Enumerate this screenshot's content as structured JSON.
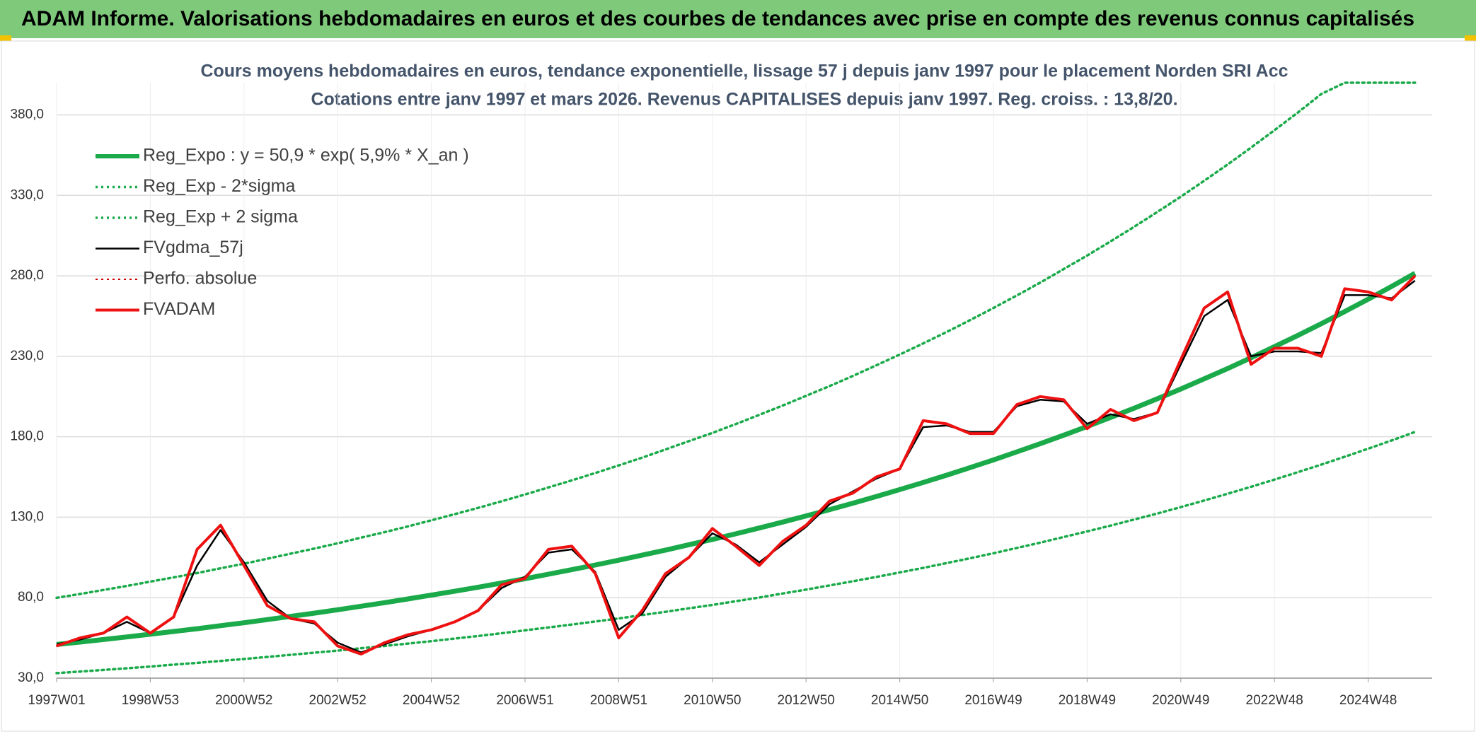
{
  "chart_data": {
    "type": "line",
    "title": "ADAM Informe. Valorisations hebdomadaires en euros et des courbes de tendances avec prise en compte des revenus connus capitalisés",
    "subtitle": [
      "Cours moyens hebdomadaires en euros, tendance exponentielle, lissage 57 j depuis janv 1997 pour le placement Norden SRI Acc",
      "Cotations entre janv 1997 et mars 2026. Revenus CAPITALISES depuis janv 1997. Reg. croiss. : 13,8/20."
    ],
    "categories": [
      "1997W01",
      null,
      null,
      null,
      "1998W53",
      null,
      null,
      null,
      "2000W52",
      null,
      null,
      null,
      "2002W52",
      null,
      null,
      null,
      "2004W52",
      null,
      null,
      null,
      "2006W51",
      null,
      null,
      null,
      "2008W51",
      null,
      null,
      null,
      "2010W50",
      null,
      null,
      null,
      "2012W50",
      null,
      null,
      null,
      "2014W50",
      null,
      null,
      null,
      "2016W49",
      null,
      null,
      null,
      "2018W49",
      null,
      null,
      null,
      "2020W49",
      null,
      null,
      null,
      "2022W48",
      null,
      null,
      null,
      "2024W48",
      null,
      null
    ],
    "ylim": [
      30,
      400
    ],
    "yticks": [
      {
        "value": 30,
        "label": "30,0"
      },
      {
        "value": 80,
        "label": "80,0"
      },
      {
        "value": 130,
        "label": "130,0"
      },
      {
        "value": 180,
        "label": "180,0"
      },
      {
        "value": 230,
        "label": "230,0"
      },
      {
        "value": 280,
        "label": "280,0"
      },
      {
        "value": 330,
        "label": "330,0"
      },
      {
        "value": 380,
        "label": "380,0"
      }
    ],
    "grid": true,
    "legend": "top-left",
    "series": [
      {
        "name": "Reg_Expo : y = 50,9 * exp( 5,9% *  X_an )",
        "color": "#1aaa4a",
        "style": "solid",
        "values": [
          50.9,
          52.4,
          54.0,
          55.6,
          57.3,
          59.0,
          60.7,
          62.6,
          64.4,
          66.4,
          68.4,
          70.4,
          72.5,
          74.7,
          76.9,
          79.2,
          81.6,
          84.0,
          86.5,
          89.1,
          91.8,
          94.6,
          97.4,
          100.3,
          103.3,
          106.4,
          109.6,
          112.9,
          116.2,
          119.7,
          123.3,
          127.0,
          130.8,
          134.7,
          138.7,
          142.9,
          147.2,
          151.6,
          156.1,
          160.8,
          165.6,
          170.6,
          175.7,
          181.0,
          186.4,
          192.0,
          197.7,
          203.6,
          209.7,
          216.0,
          222.4,
          229.1,
          236.0,
          243.0,
          250.3,
          257.8,
          265.5,
          273.4,
          281.6
        ]
      },
      {
        "name": "Reg_Exp - 2*sigma",
        "color": "#1aaa4a",
        "style": "dotted",
        "values": [
          33.1,
          34.1,
          35.1,
          36.1,
          37.2,
          38.4,
          39.5,
          40.7,
          41.9,
          43.2,
          44.5,
          45.8,
          47.1,
          48.6,
          50.0,
          51.5,
          53.0,
          54.6,
          56.2,
          57.9,
          59.7,
          61.5,
          63.3,
          65.2,
          67.1,
          69.2,
          71.2,
          73.4,
          75.5,
          77.8,
          80.1,
          82.6,
          85.0,
          87.6,
          90.2,
          92.9,
          95.7,
          98.5,
          101.5,
          104.5,
          107.6,
          110.9,
          114.2,
          117.7,
          121.2,
          124.8,
          128.5,
          132.3,
          136.3,
          140.4,
          144.6,
          148.9,
          153.4,
          158.0,
          162.7,
          167.6,
          172.6,
          177.7,
          183.0
        ]
      },
      {
        "name": "Reg_Exp + 2 sigma",
        "color": "#1aaa4a",
        "style": "dotted",
        "values": [
          79.9,
          82.3,
          84.8,
          87.3,
          90.0,
          92.6,
          95.3,
          98.3,
          101.1,
          104.2,
          107.4,
          110.5,
          113.8,
          117.3,
          120.7,
          124.3,
          128.1,
          131.9,
          135.8,
          139.9,
          144.1,
          148.5,
          152.9,
          157.5,
          162.2,
          167.0,
          172.1,
          177.3,
          182.4,
          187.9,
          193.6,
          199.4,
          205.4,
          211.5,
          217.8,
          224.4,
          231.1,
          238.0,
          245.1,
          252.5,
          260.0,
          267.8,
          275.8,
          284.2,
          292.6,
          301.4,
          310.4,
          319.7,
          329.2,
          339.1,
          349.2,
          359.7,
          370.5,
          381.5,
          393.0,
          400,
          400,
          400,
          400
        ]
      },
      {
        "name": "FVgdma_57j",
        "color": "#000000",
        "style": "solid",
        "values": [
          51,
          54,
          58,
          65,
          58,
          68,
          100,
          122,
          102,
          78,
          67,
          64,
          52,
          46,
          51,
          56,
          60,
          65,
          72,
          86,
          93,
          108,
          110,
          96,
          60,
          70,
          93,
          105,
          120,
          113,
          102,
          113,
          124,
          138,
          146,
          154,
          160,
          186,
          187,
          183,
          183,
          199,
          203,
          202,
          188,
          194,
          191,
          195,
          225,
          255,
          265,
          230,
          233,
          233,
          232,
          268,
          268,
          266,
          277
        ]
      },
      {
        "name": "Perfo. absolue",
        "color": "#cc0000",
        "style": "dotted",
        "values": [
          50,
          55,
          58,
          68,
          58,
          68,
          110,
          125,
          100,
          75,
          67,
          65,
          50,
          45,
          52,
          57,
          60,
          65,
          72,
          88,
          92,
          110,
          112,
          95,
          55,
          72,
          95,
          105,
          123,
          112,
          100,
          115,
          125,
          140,
          145,
          155,
          160,
          190,
          188,
          182,
          182,
          200,
          205,
          203,
          185,
          197,
          190,
          195,
          228,
          260,
          270,
          225,
          235,
          235,
          230,
          272,
          270,
          265,
          280
        ]
      },
      {
        "name": "FVADAM",
        "color": "#ee1111",
        "style": "solid",
        "values": [
          50,
          55,
          58,
          68,
          58,
          68,
          110,
          125,
          100,
          75,
          67,
          65,
          50,
          45,
          52,
          57,
          60,
          65,
          72,
          88,
          92,
          110,
          112,
          95,
          55,
          72,
          95,
          105,
          123,
          112,
          100,
          115,
          125,
          140,
          145,
          155,
          160,
          190,
          188,
          182,
          182,
          200,
          205,
          203,
          185,
          197,
          190,
          195,
          228,
          260,
          270,
          225,
          235,
          235,
          230,
          272,
          270,
          265,
          280
        ]
      }
    ]
  }
}
